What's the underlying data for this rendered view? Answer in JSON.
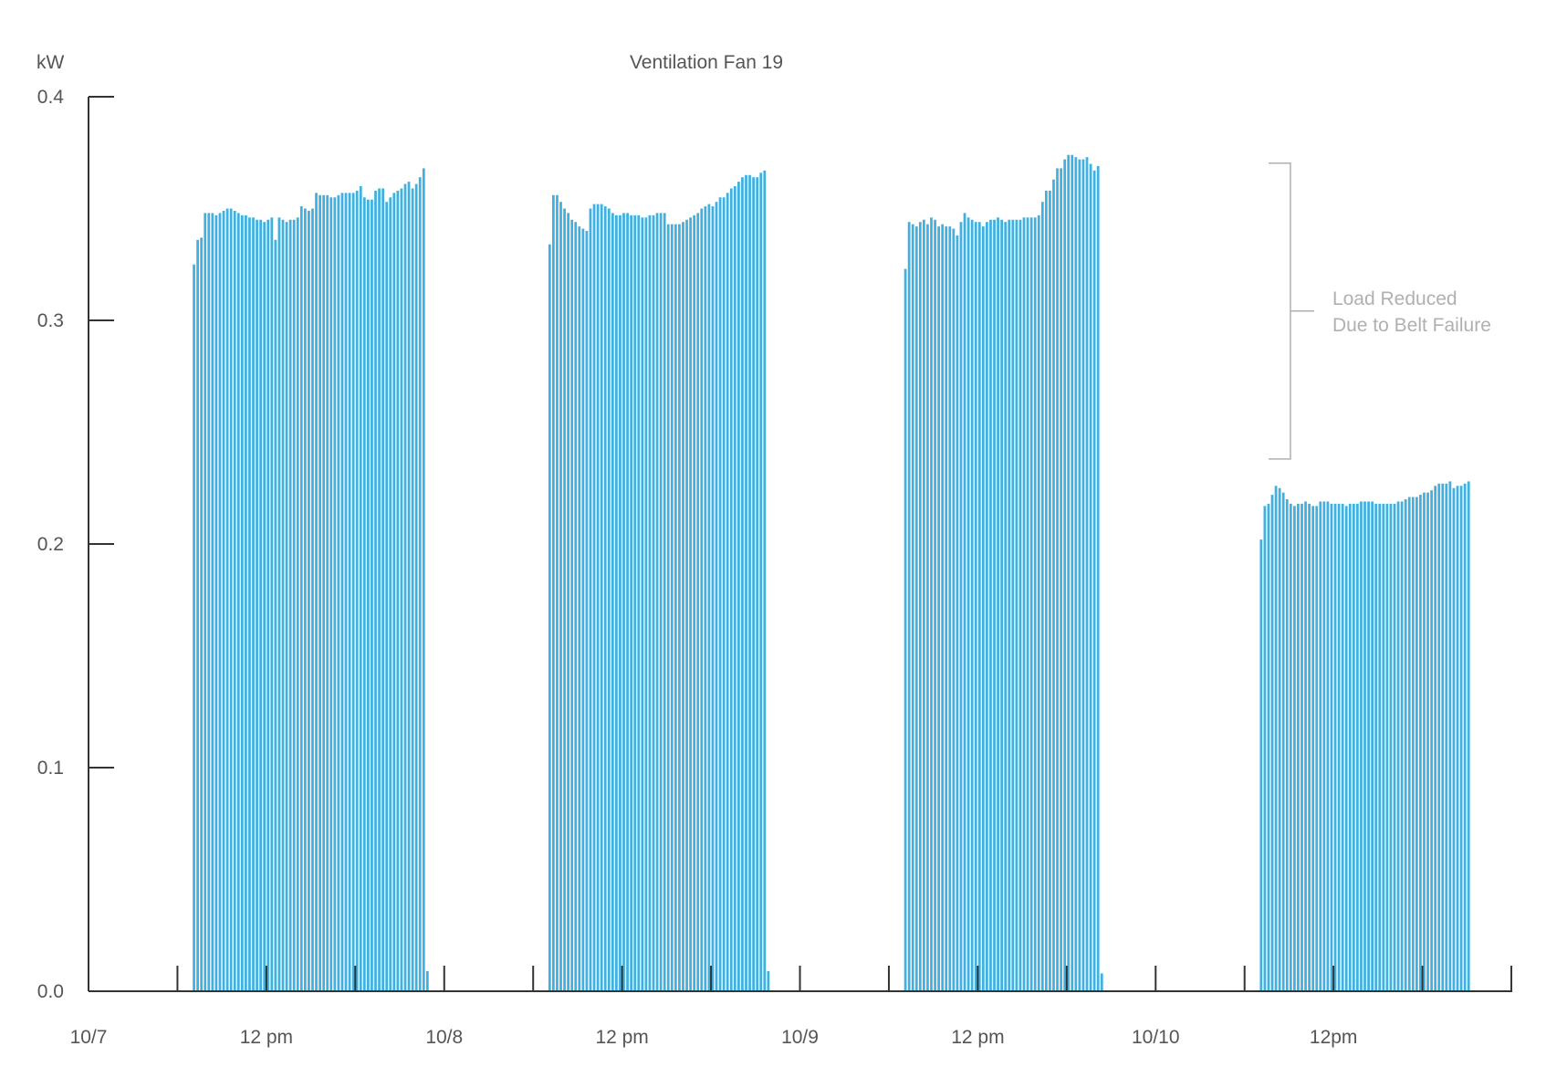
{
  "chart_data": {
    "type": "bar",
    "title": "Ventilation Fan 19",
    "ylabel": "kW",
    "xlabel": "",
    "ylim": [
      0,
      0.4
    ],
    "yticks": [
      {
        "value": 0.0,
        "label": "0.0"
      },
      {
        "value": 0.1,
        "label": "0.1"
      },
      {
        "value": 0.2,
        "label": "0.2"
      },
      {
        "value": 0.3,
        "label": "0.3"
      },
      {
        "value": 0.4,
        "label": "0.4"
      }
    ],
    "x_unit": "hours since 10/7 00:00",
    "xlim": [
      0,
      96
    ],
    "minor_ticks_every_hours": 6,
    "x_labels": [
      {
        "x": 0,
        "label": "10/7"
      },
      {
        "x": 12,
        "label": "12 pm"
      },
      {
        "x": 24,
        "label": "10/8"
      },
      {
        "x": 36,
        "label": "12 pm"
      },
      {
        "x": 48,
        "label": "10/9"
      },
      {
        "x": 60,
        "label": "12 pm"
      },
      {
        "x": 72,
        "label": "10/10"
      },
      {
        "x": 84,
        "label": "12pm"
      }
    ],
    "grid": false,
    "legend": "none",
    "bar_color": "#3fb0e0",
    "series": [
      {
        "start_hour": 7,
        "step_hours": 0.25,
        "values": [
          0.325,
          0.336,
          0.337,
          0.348,
          0.348,
          0.348,
          0.347,
          0.348,
          0.349,
          0.35,
          0.35,
          0.349,
          0.348,
          0.347,
          0.347,
          0.346,
          0.346,
          0.345,
          0.345,
          0.344,
          0.345,
          0.346,
          0.336,
          0.346,
          0.345,
          0.344,
          0.345,
          0.345,
          0.346,
          0.351,
          0.35,
          0.349,
          0.35,
          0.357,
          0.356,
          0.356,
          0.356,
          0.355,
          0.355,
          0.356,
          0.357,
          0.357,
          0.357,
          0.357,
          0.358,
          0.36,
          0.355,
          0.354,
          0.354,
          0.358,
          0.359,
          0.359,
          0.353,
          0.355,
          0.357,
          0.358,
          0.359,
          0.361,
          0.362,
          0.359,
          0.361,
          0.364,
          0.368,
          0.009
        ]
      },
      {
        "start_hour": 31,
        "step_hours": 0.25,
        "values": [
          0.334,
          0.356,
          0.356,
          0.353,
          0.35,
          0.348,
          0.345,
          0.344,
          0.342,
          0.341,
          0.34,
          0.35,
          0.352,
          0.352,
          0.352,
          0.351,
          0.35,
          0.348,
          0.347,
          0.347,
          0.348,
          0.348,
          0.347,
          0.347,
          0.347,
          0.346,
          0.346,
          0.347,
          0.347,
          0.348,
          0.348,
          0.348,
          0.343,
          0.343,
          0.343,
          0.343,
          0.344,
          0.345,
          0.346,
          0.347,
          0.348,
          0.35,
          0.351,
          0.352,
          0.351,
          0.353,
          0.355,
          0.355,
          0.357,
          0.359,
          0.36,
          0.362,
          0.364,
          0.365,
          0.365,
          0.364,
          0.364,
          0.366,
          0.367,
          0.009
        ]
      },
      {
        "start_hour": 55,
        "step_hours": 0.25,
        "values": [
          0.323,
          0.344,
          0.343,
          0.342,
          0.344,
          0.345,
          0.343,
          0.346,
          0.345,
          0.342,
          0.343,
          0.342,
          0.342,
          0.341,
          0.338,
          0.344,
          0.348,
          0.346,
          0.345,
          0.344,
          0.344,
          0.342,
          0.344,
          0.345,
          0.345,
          0.346,
          0.345,
          0.344,
          0.345,
          0.345,
          0.345,
          0.345,
          0.346,
          0.346,
          0.346,
          0.346,
          0.347,
          0.353,
          0.358,
          0.358,
          0.363,
          0.368,
          0.368,
          0.372,
          0.374,
          0.374,
          0.373,
          0.372,
          0.372,
          0.373,
          0.37,
          0.367,
          0.369,
          0.008
        ]
      },
      {
        "start_hour": 79,
        "step_hours": 0.25,
        "values": [
          0.202,
          0.217,
          0.218,
          0.222,
          0.226,
          0.225,
          0.223,
          0.22,
          0.218,
          0.217,
          0.218,
          0.218,
          0.219,
          0.218,
          0.217,
          0.217,
          0.219,
          0.219,
          0.219,
          0.218,
          0.218,
          0.218,
          0.218,
          0.217,
          0.218,
          0.218,
          0.218,
          0.219,
          0.219,
          0.219,
          0.219,
          0.218,
          0.218,
          0.218,
          0.218,
          0.218,
          0.218,
          0.219,
          0.219,
          0.22,
          0.221,
          0.221,
          0.221,
          0.222,
          0.223,
          0.223,
          0.224,
          0.226,
          0.227,
          0.227,
          0.227,
          0.228,
          0.225,
          0.226,
          0.226,
          0.227,
          0.228
        ]
      }
    ],
    "annotation": {
      "lines": [
        "Load Reduced",
        "Due to Belt Failure"
      ],
      "from_value": 0.374,
      "to_value": 0.238,
      "bracket_at_hour": 79
    }
  }
}
